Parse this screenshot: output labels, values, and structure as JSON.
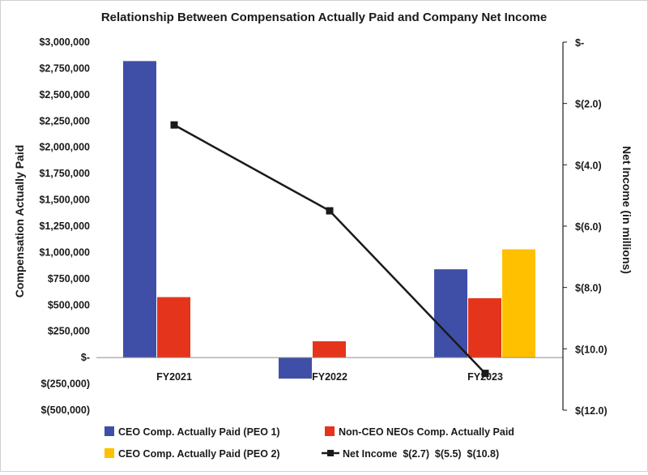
{
  "chart_data": {
    "type": "bar",
    "title": "Relationship Between Compensation Actually Paid and Company Net Income",
    "categories": [
      "FY2021",
      "FY2022",
      "FY2023"
    ],
    "ylabel": "Compensation Actually Paid",
    "y2label": "Net Income (in millions)",
    "ylim": [
      -500000,
      3000000
    ],
    "y_ticks": [
      3000000,
      2750000,
      2500000,
      2250000,
      2000000,
      1750000,
      1500000,
      1250000,
      1000000,
      750000,
      500000,
      250000,
      0,
      -250000,
      -500000
    ],
    "y_tick_labels": [
      "$3,000,000",
      "$2,750,000",
      "$2,500,000",
      "$2,250,000",
      "$2,000,000",
      "$1,750,000",
      "$1,500,000",
      "$1,250,000",
      "$1,000,000",
      "$750,000",
      "$500,000",
      "$250,000",
      "$-",
      "$(250,000)",
      "$(500,000)"
    ],
    "y2lim": [
      -12,
      0
    ],
    "y2_ticks": [
      0,
      -2,
      -4,
      -6,
      -8,
      -10,
      -12
    ],
    "y2_tick_labels": [
      "$-",
      "$(2.0)",
      "$(4.0)",
      "$(6.0)",
      "$(8.0)",
      "$(10.0)",
      "$(12.0)"
    ],
    "series": [
      {
        "name": "CEO Comp. Actually Paid (PEO 1)",
        "type": "bar",
        "color": "#3f4fa8",
        "values": [
          2820000,
          -200000,
          840000
        ]
      },
      {
        "name": "Non-CEO NEOs Comp. Actually Paid",
        "type": "bar",
        "color": "#e5341c",
        "values": [
          575000,
          155000,
          565000
        ]
      },
      {
        "name": "CEO Comp. Actually Paid (PEO 2)",
        "type": "bar",
        "color": "#ffc000",
        "values": [
          null,
          null,
          1030000
        ]
      },
      {
        "name": "Net Income",
        "type": "line",
        "axis": "secondary",
        "color": "#1a1a1a",
        "values": [
          -2.7,
          -5.5,
          -10.8
        ]
      }
    ],
    "legend": {
      "position": "bottom",
      "entries": [
        {
          "label": "CEO Comp. Actually Paid (PEO 1)",
          "color": "#3f4fa8",
          "kind": "box"
        },
        {
          "label": "Non-CEO NEOs Comp. Actually Paid",
          "color": "#e5341c",
          "kind": "box"
        },
        {
          "label": "CEO Comp. Actually Paid (PEO 2)",
          "color": "#ffc000",
          "kind": "box"
        },
        {
          "label": "Net Income  $(2.7)  $(5.5)  $(10.8)",
          "color": "#1a1a1a",
          "kind": "line"
        }
      ]
    }
  }
}
